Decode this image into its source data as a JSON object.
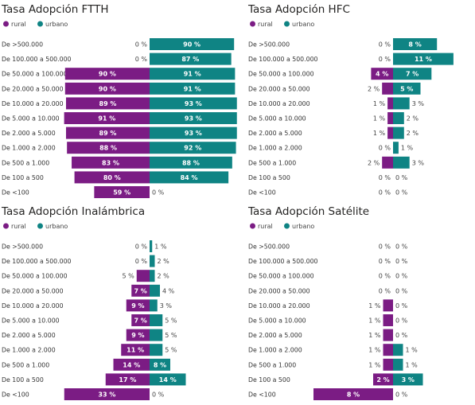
{
  "colors": {
    "rural": "#7b1c84",
    "urbano": "#0f8484"
  },
  "categories": [
    "De >500.000",
    "De 100.000 a 500.000",
    "De 50.000 a 100.000",
    "De 20.000 a 50.000",
    "De 10.000 a 20.000",
    "De 5.000 a 10.000",
    "De 2.000 a 5.000",
    "De 1.000 a 2.000",
    "De 500 a 1.000",
    "De 100 a 500",
    "De <100"
  ],
  "chart_data": [
    {
      "type": "bar",
      "orientation": "horizontal-diverging",
      "title": "Tasa Adopción FTTH",
      "legend": [
        "rural",
        "urbano"
      ],
      "categories": [
        "De >500.000",
        "De 100.000 a 500.000",
        "De 50.000 a 100.000",
        "De 20.000 a 50.000",
        "De 10.000 a 20.000",
        "De 5.000 a 10.000",
        "De 2.000 a 5.000",
        "De 1.000 a 2.000",
        "De 500 a 1.000",
        "De 100 a 500",
        "De <100"
      ],
      "series": [
        {
          "name": "rural",
          "values": [
            0,
            0,
            90,
            90,
            89,
            91,
            89,
            88,
            83,
            80,
            59
          ]
        },
        {
          "name": "urbano",
          "values": [
            90,
            87,
            91,
            91,
            93,
            93,
            93,
            92,
            88,
            84,
            0
          ]
        }
      ]
    },
    {
      "type": "bar",
      "orientation": "horizontal-diverging",
      "title": "Tasa Adopción HFC",
      "legend": [
        "rural",
        "urbano"
      ],
      "categories": [
        "De >500.000",
        "De 100.000 a 500.000",
        "De 50.000 a 100.000",
        "De 20.000 a 50.000",
        "De 10.000 a 20.000",
        "De 5.000 a 10.000",
        "De 2.000 a 5.000",
        "De 1.000 a 2.000",
        "De 500 a 1.000",
        "De 100 a 500",
        "De <100"
      ],
      "series": [
        {
          "name": "rural",
          "values": [
            0,
            0,
            4,
            2,
            1,
            1,
            1,
            0,
            2,
            0,
            0
          ]
        },
        {
          "name": "urbano",
          "values": [
            8,
            11,
            7,
            5,
            3,
            2,
            2,
            1,
            3,
            0,
            0
          ]
        }
      ]
    },
    {
      "type": "bar",
      "orientation": "horizontal-diverging",
      "title": "Tasa Adopción Inalámbrica",
      "legend": [
        "rural",
        "urbano"
      ],
      "categories": [
        "De >500.000",
        "De 100.000 a 500.000",
        "De 50.000 a 100.000",
        "De 20.000 a 50.000",
        "De 10.000 a 20.000",
        "De 5.000 a 10.000",
        "De 2.000 a 5.000",
        "De 1.000 a 2.000",
        "De 500 a 1.000",
        "De 100 a 500",
        "De <100"
      ],
      "series": [
        {
          "name": "rural",
          "values": [
            0,
            0,
            5,
            7,
            9,
            7,
            9,
            11,
            14,
            17,
            33
          ]
        },
        {
          "name": "urbano",
          "values": [
            1,
            2,
            2,
            4,
            3,
            5,
            5,
            5,
            8,
            14,
            0
          ]
        }
      ]
    },
    {
      "type": "bar",
      "orientation": "horizontal-diverging",
      "title": "Tasa Adopción Satélite",
      "legend": [
        "rural",
        "urbano"
      ],
      "categories": [
        "De >500.000",
        "De 100.000 a 500.000",
        "De 50.000 a 100.000",
        "De 20.000 a 50.000",
        "De 10.000 a 20.000",
        "De 5.000 a 10.000",
        "De 2.000 a 5.000",
        "De 1.000 a 2.000",
        "De 500 a 1.000",
        "De 100 a 500",
        "De <100"
      ],
      "series": [
        {
          "name": "rural",
          "values": [
            0,
            0,
            0,
            0,
            1,
            1,
            1,
            1,
            1,
            2,
            8
          ]
        },
        {
          "name": "urbano",
          "values": [
            0,
            0,
            0,
            0,
            0,
            0,
            0,
            1,
            1,
            3,
            0
          ]
        }
      ]
    }
  ]
}
